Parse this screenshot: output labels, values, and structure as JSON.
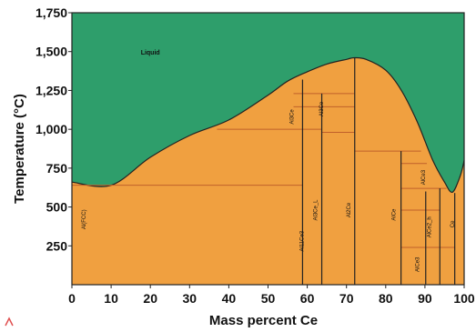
{
  "colors": {
    "liquid": "#2e9e6b",
    "solid": "#f0a040",
    "line": "#222222",
    "phase_line": "#c0602a",
    "marker": "#e05050"
  },
  "axes": {
    "xlabel": "Mass percent Ce",
    "ylabel": "Temperature (°C)",
    "xlim": [
      0,
      100
    ],
    "ylim": [
      0,
      1750
    ],
    "x_ticks": [
      "0",
      "10",
      "20",
      "30",
      "40",
      "50",
      "60",
      "70",
      "80",
      "90",
      "100"
    ],
    "y_ticks": [
      "250",
      "500",
      "750",
      "1,000",
      "1,250",
      "1,500",
      "1,750"
    ]
  },
  "regions": {
    "liquid": "Liquid",
    "labels": [
      {
        "id": "al-fcc",
        "text": "Al(FCC)",
        "x": 3.5,
        "y": 420,
        "vertical": true
      },
      {
        "id": "al11ce3",
        "text": "Al11Ce3",
        "x": 59,
        "y": 280,
        "vertical": true
      },
      {
        "id": "al3ce-low",
        "text": "Al3Ce_L",
        "x": 62.5,
        "y": 480,
        "vertical": true
      },
      {
        "id": "al2ce",
        "text": "Al2Ce",
        "x": 71,
        "y": 480,
        "vertical": true
      },
      {
        "id": "alce",
        "text": "AlCe",
        "x": 82.5,
        "y": 450,
        "vertical": true
      },
      {
        "id": "al3ce-high",
        "text": "Al3Ce",
        "x": 56.5,
        "y": 1080,
        "vertical": true
      },
      {
        "id": "al3ce-mid",
        "text": "Al3Ce",
        "x": 64,
        "y": 1130,
        "vertical": true
      },
      {
        "id": "alce2",
        "text": "AlCe2_h",
        "x": 91.5,
        "y": 370,
        "vertical": true
      },
      {
        "id": "alce3",
        "text": "AlCe3",
        "x": 88.5,
        "y": 130,
        "vertical": true
      },
      {
        "id": "alce3-b",
        "text": "AlCe3",
        "x": 90,
        "y": 690,
        "vertical": true
      },
      {
        "id": "ce",
        "text": "Ce",
        "x": 97.5,
        "y": 390,
        "vertical": true
      }
    ]
  },
  "liquidus": [
    [
      0,
      660
    ],
    [
      10,
      640
    ],
    [
      20,
      820
    ],
    [
      30,
      960
    ],
    [
      40,
      1060
    ],
    [
      50,
      1220
    ],
    [
      55,
      1310
    ],
    [
      60,
      1370
    ],
    [
      65,
      1420
    ],
    [
      70,
      1450
    ],
    [
      72,
      1460
    ],
    [
      75,
      1450
    ],
    [
      80,
      1380
    ],
    [
      84,
      1250
    ],
    [
      88,
      1050
    ],
    [
      92,
      800
    ],
    [
      95,
      660
    ],
    [
      97,
      595
    ],
    [
      99,
      700
    ],
    [
      100,
      800
    ]
  ],
  "vertical_lines": [
    {
      "x": 58.8,
      "y0": 0,
      "y1": 1320
    },
    {
      "x": 63.7,
      "y0": 0,
      "y1": 1230
    },
    {
      "x": 72.1,
      "y0": 0,
      "y1": 1460
    },
    {
      "x": 83.9,
      "y0": 0,
      "y1": 860
    },
    {
      "x": 90.2,
      "y0": 0,
      "y1": 600
    },
    {
      "x": 93.8,
      "y0": 0,
      "y1": 620
    },
    {
      "x": 97.6,
      "y0": 0,
      "y1": 590
    }
  ],
  "horizontal_lines": [
    {
      "y": 640,
      "x0": 0,
      "x1": 58.8
    },
    {
      "y": 1000,
      "x0": 37,
      "x1": 63.7
    },
    {
      "y": 1230,
      "x0": 56.5,
      "x1": 72.1
    },
    {
      "y": 1145,
      "x0": 56.5,
      "x1": 72.1
    },
    {
      "y": 980,
      "x0": 63.7,
      "x1": 72.1
    },
    {
      "y": 860,
      "x0": 72.1,
      "x1": 89.0
    },
    {
      "y": 780,
      "x0": 83.9,
      "x1": 90.5
    },
    {
      "y": 620,
      "x0": 83.9,
      "x1": 95.5
    },
    {
      "y": 480,
      "x0": 83.9,
      "x1": 93.8
    },
    {
      "y": 240,
      "x0": 83.9,
      "x1": 97.6
    }
  ]
}
